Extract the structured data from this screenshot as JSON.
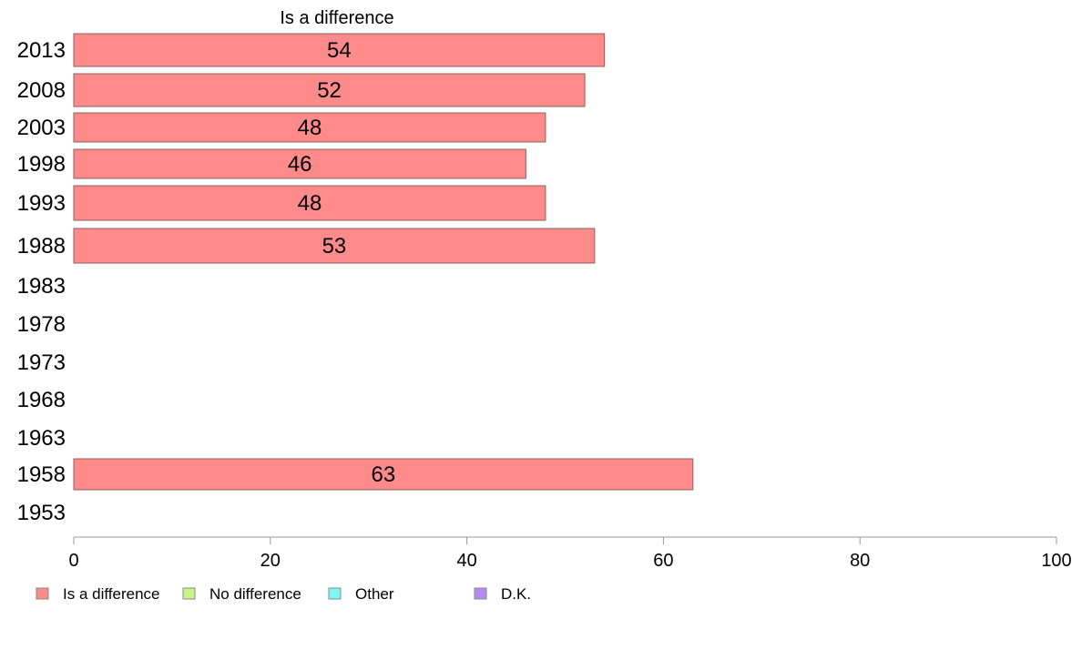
{
  "chart_data": {
    "type": "bar",
    "orientation": "horizontal",
    "title": "Is a difference",
    "categories": [
      "2013",
      "2008",
      "2003",
      "1998",
      "1993",
      "1988",
      "1983",
      "1978",
      "1973",
      "1968",
      "1963",
      "1958",
      "1953"
    ],
    "series": [
      {
        "name": "Is a difference",
        "values": [
          54,
          52,
          48,
          46,
          48,
          53,
          null,
          null,
          null,
          null,
          null,
          63,
          null
        ]
      }
    ],
    "data_labels": [
      "54",
      "52",
      "48",
      "46",
      "48",
      "53",
      "",
      "",
      "",
      "",
      "",
      "63",
      ""
    ],
    "xlim": [
      0,
      100
    ],
    "xticks": [
      "0",
      "20",
      "40",
      "60",
      "80",
      "100"
    ],
    "xlabel": "",
    "ylabel": "",
    "grid": false,
    "legend": {
      "placement": "bottom-left",
      "entries": [
        {
          "label": "Is a difference",
          "color": "#ff8a8a"
        },
        {
          "label": "No difference",
          "color": "#c8f58a"
        },
        {
          "label": "Other",
          "color": "#7ff5f5"
        },
        {
          "label": "D.K.",
          "color": "#b58af5"
        }
      ]
    },
    "bar_color": "#ff8a8a",
    "bar_border": "#8c6060",
    "axis_color": "#999999"
  }
}
